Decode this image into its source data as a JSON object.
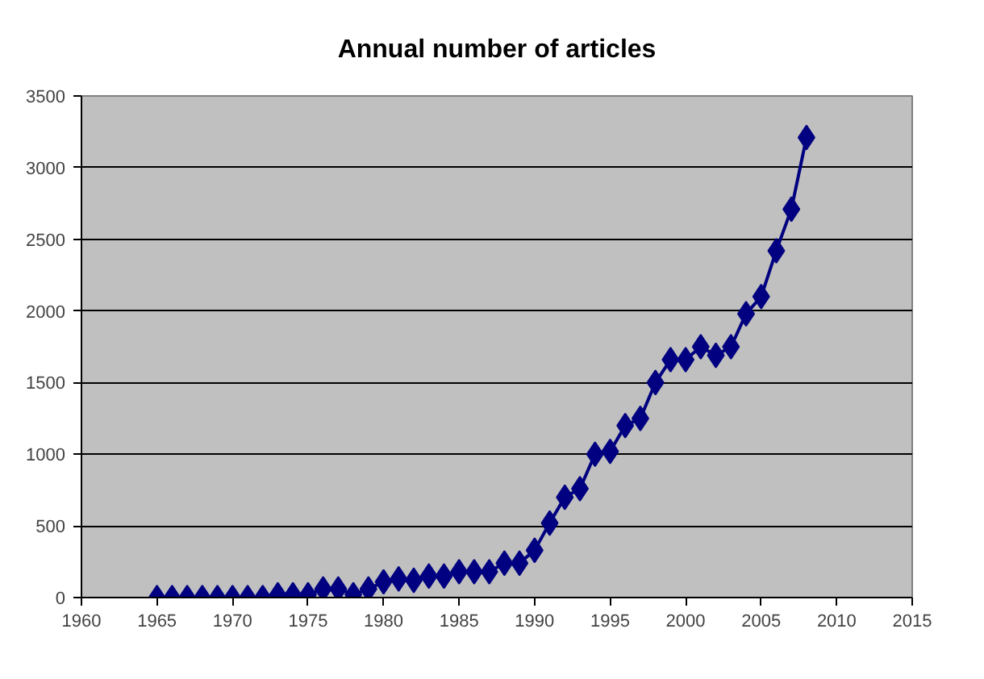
{
  "chart_data": {
    "type": "line",
    "title": "Annual number of articles",
    "marker": "diamond",
    "line_style": "solid",
    "grid": "y",
    "x": [
      1965,
      1966,
      1967,
      1968,
      1969,
      1970,
      1971,
      1972,
      1973,
      1974,
      1975,
      1976,
      1977,
      1978,
      1979,
      1980,
      1981,
      1982,
      1983,
      1984,
      1985,
      1986,
      1987,
      1988,
      1989,
      1990,
      1991,
      1992,
      1993,
      1994,
      1995,
      1996,
      1997,
      1998,
      1999,
      2000,
      2001,
      2002,
      2003,
      2004,
      2005,
      2006,
      2007,
      2008
    ],
    "series": [
      {
        "color": "#000080",
        "values": [
          0,
          0,
          0,
          0,
          0,
          0,
          0,
          0,
          20,
          20,
          20,
          60,
          60,
          20,
          60,
          110,
          130,
          120,
          150,
          150,
          180,
          180,
          180,
          240,
          240,
          330,
          520,
          700,
          760,
          1000,
          1020,
          1200,
          1250,
          1500,
          1660,
          1660,
          1750,
          1690,
          1750,
          1980,
          2100,
          2420,
          2710,
          3210
        ]
      }
    ],
    "xlim": [
      1960,
      2015
    ],
    "xticks": [
      1960,
      1965,
      1970,
      1975,
      1980,
      1985,
      1990,
      1995,
      2000,
      2005,
      2010,
      2015
    ],
    "ylim": [
      0,
      3500
    ],
    "yticks": [
      0,
      500,
      1000,
      1500,
      2000,
      2500,
      3000,
      3500
    ]
  }
}
